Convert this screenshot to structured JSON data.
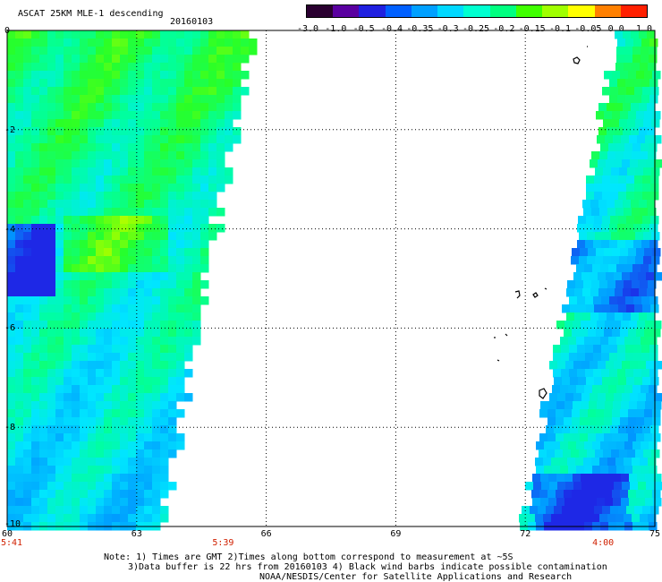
{
  "header": {
    "title": "ASCAT 25KM MLE-1 descending",
    "date": "20160103"
  },
  "colorbar": {
    "labels": [
      "-3.0",
      "-1.0",
      "-0.5",
      "-0.4",
      "-0.35",
      "-0.3",
      "-0.25",
      "-0.2",
      "-0.15",
      "-0.1",
      "-0.05",
      "0.0",
      "1.0"
    ],
    "colors": [
      "#2a0030",
      "#5a00a0",
      "#2020e0",
      "#0060ff",
      "#00a0ff",
      "#00d8ff",
      "#00ffd0",
      "#00ff80",
      "#40ff00",
      "#a0ff00",
      "#ffff00",
      "#ff8000",
      "#ff2000"
    ]
  },
  "map": {
    "lon_ticks": [
      "60",
      "63",
      "66",
      "69",
      "72",
      "75"
    ],
    "lat_ticks": [
      "0",
      "-2",
      "-4",
      "-6",
      "-8",
      "-10"
    ],
    "lon_range": [
      60,
      75
    ],
    "lat_range": [
      0,
      -10
    ],
    "grid": "dotted",
    "swaths": [
      {
        "side": "west",
        "lon_edge_top": 65.7,
        "lon_edge_bottom": 63.6,
        "dominant_color": "green/cyan"
      },
      {
        "side": "east",
        "lon_edge_top": 74.0,
        "lon_edge_bottom": 71.8,
        "dominant_color": "cyan/green"
      }
    ],
    "time_labels": [
      {
        "text": "5:41",
        "lon": 60
      },
      {
        "text": "5:39",
        "lon": 65
      },
      {
        "text": "4:00",
        "lon": 73.8
      }
    ]
  },
  "notes": {
    "line1": "Note: 1) Times are GMT 2)Times along bottom correspond to measurement at ~5S",
    "line2": "3)Data buffer is 22 hrs from 20160103 4) Black wind barbs indicate possible contamination",
    "line3": "NOAA/NESDIS/Center for Satellite Applications and Research"
  }
}
